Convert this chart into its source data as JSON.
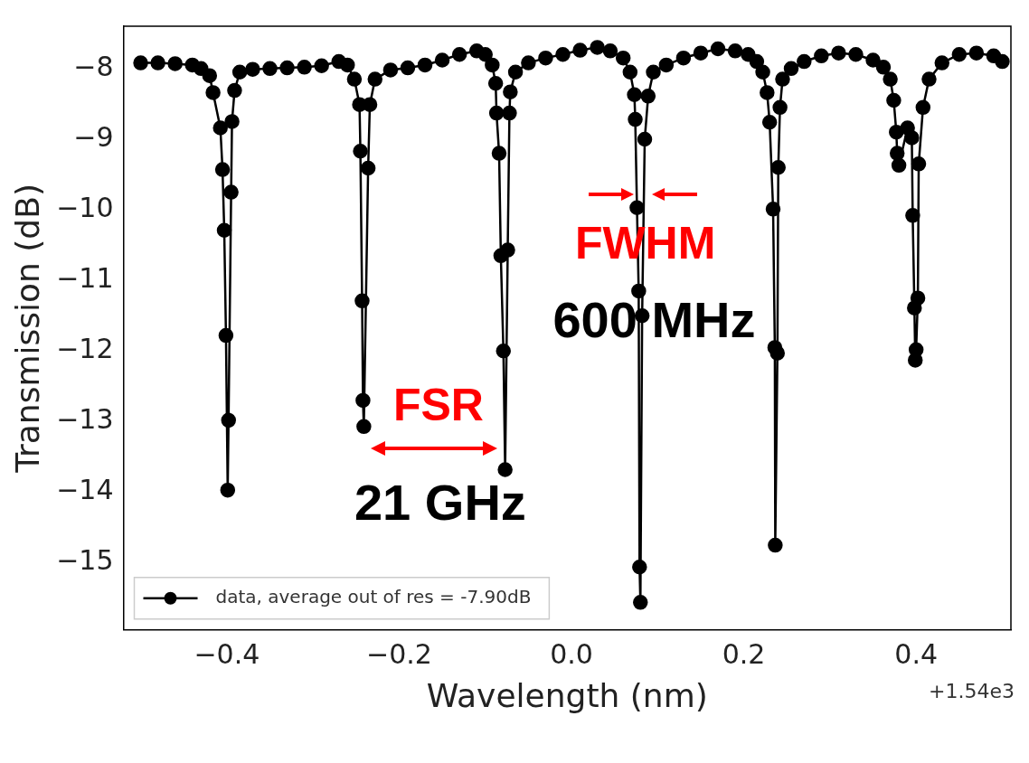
{
  "chart_data": {
    "type": "line",
    "xlabel": "Wavelength (nm)",
    "ylabel": "Transmission (dB)",
    "xlim": [
      -0.52,
      0.51
    ],
    "ylim": [
      -15.95,
      -7.4
    ],
    "xticks": [
      {
        "value": -0.4,
        "label": "−0.4"
      },
      {
        "value": -0.2,
        "label": "−0.2"
      },
      {
        "value": 0,
        "label": "0.0"
      },
      {
        "value": 0.2,
        "label": "0.2"
      },
      {
        "value": 0.4,
        "label": "0.4"
      }
    ],
    "yticks": [
      {
        "value": -15,
        "label": "−15"
      },
      {
        "value": -14,
        "label": "−14"
      },
      {
        "value": -13,
        "label": "−13"
      },
      {
        "value": -12,
        "label": "−12"
      },
      {
        "value": -11,
        "label": "−11"
      },
      {
        "value": -10,
        "label": "−10"
      },
      {
        "value": -9,
        "label": "−9"
      },
      {
        "value": -8,
        "label": "−8"
      }
    ],
    "grid": false,
    "legend": "bottom left",
    "marker": "circle",
    "line_style": "solid",
    "series": [
      {
        "name": "data, average out of res = -7.90dB",
        "color": "#000000",
        "x": [
          -0.5,
          -0.48,
          -0.46,
          -0.44,
          -0.43,
          -0.42,
          -0.416,
          -0.4075,
          -0.405,
          -0.403,
          -0.401,
          -0.399,
          -0.398,
          -0.395,
          -0.394,
          -0.391,
          -0.385,
          -0.37,
          -0.35,
          -0.33,
          -0.31,
          -0.29,
          -0.27,
          -0.26,
          -0.252,
          -0.246,
          -0.245,
          -0.243,
          -0.242,
          -0.241,
          -0.236,
          -0.234,
          -0.228,
          -0.21,
          -0.19,
          -0.17,
          -0.15,
          -0.13,
          -0.11,
          -0.1,
          -0.092,
          -0.088,
          -0.087,
          -0.084,
          -0.082,
          -0.079,
          -0.077,
          -0.074,
          -0.072,
          -0.071,
          -0.065,
          -0.05,
          -0.03,
          -0.01,
          0.01,
          0.03,
          0.045,
          0.06,
          0.068,
          0.073,
          0.074,
          0.076,
          0.078,
          0.079,
          0.08,
          0.082,
          0.085,
          0.089,
          0.095,
          0.11,
          0.13,
          0.15,
          0.17,
          0.19,
          0.205,
          0.215,
          0.222,
          0.227,
          0.23,
          0.234,
          0.236,
          0.2365,
          0.239,
          0.24,
          0.242,
          0.245,
          0.255,
          0.27,
          0.29,
          0.31,
          0.33,
          0.35,
          0.362,
          0.37,
          0.374,
          0.377,
          0.378,
          0.38,
          0.39,
          0.395,
          0.396,
          0.398,
          0.399,
          0.4,
          0.402,
          0.403,
          0.408,
          0.415,
          0.43,
          0.45,
          0.47,
          0.49,
          0.5
        ],
        "values": [
          -7.92,
          -7.92,
          -7.93,
          -7.95,
          -8.0,
          -8.1,
          -8.34,
          -8.84,
          -9.43,
          -10.29,
          -11.78,
          -13.97,
          -12.98,
          -9.75,
          -8.75,
          -8.31,
          -8.05,
          -8.01,
          -8.0,
          -7.99,
          -7.98,
          -7.96,
          -7.9,
          -7.95,
          -8.15,
          -8.51,
          -9.17,
          -11.29,
          -12.7,
          -13.07,
          -9.41,
          -8.51,
          -8.15,
          -8.02,
          -7.99,
          -7.95,
          -7.88,
          -7.8,
          -7.75,
          -7.8,
          -7.95,
          -8.21,
          -8.63,
          -9.2,
          -10.65,
          -12.0,
          -13.68,
          -10.57,
          -8.63,
          -8.33,
          -8.05,
          -7.92,
          -7.85,
          -7.8,
          -7.74,
          -7.7,
          -7.75,
          -7.85,
          -8.05,
          -8.37,
          -8.72,
          -9.97,
          -11.15,
          -15.06,
          -15.56,
          -11.5,
          -9.0,
          -8.39,
          -8.05,
          -7.95,
          -7.85,
          -7.78,
          -7.72,
          -7.75,
          -7.8,
          -7.9,
          -8.05,
          -8.34,
          -8.76,
          -9.99,
          -11.95,
          -14.75,
          -12.03,
          -9.4,
          -8.55,
          -8.15,
          -8.0,
          -7.9,
          -7.82,
          -7.78,
          -7.8,
          -7.88,
          -7.98,
          -8.15,
          -8.45,
          -8.9,
          -9.2,
          -9.37,
          -8.84,
          -8.98,
          -10.08,
          -11.39,
          -12.13,
          -11.98,
          -11.25,
          -9.35,
          -8.55,
          -8.15,
          -7.92,
          -7.8,
          -7.78,
          -7.82,
          -7.9
        ]
      }
    ],
    "annotations": [
      "FWHM",
      "600 MHz",
      "FSR",
      "21 GHz",
      "+1.54e3"
    ]
  }
}
